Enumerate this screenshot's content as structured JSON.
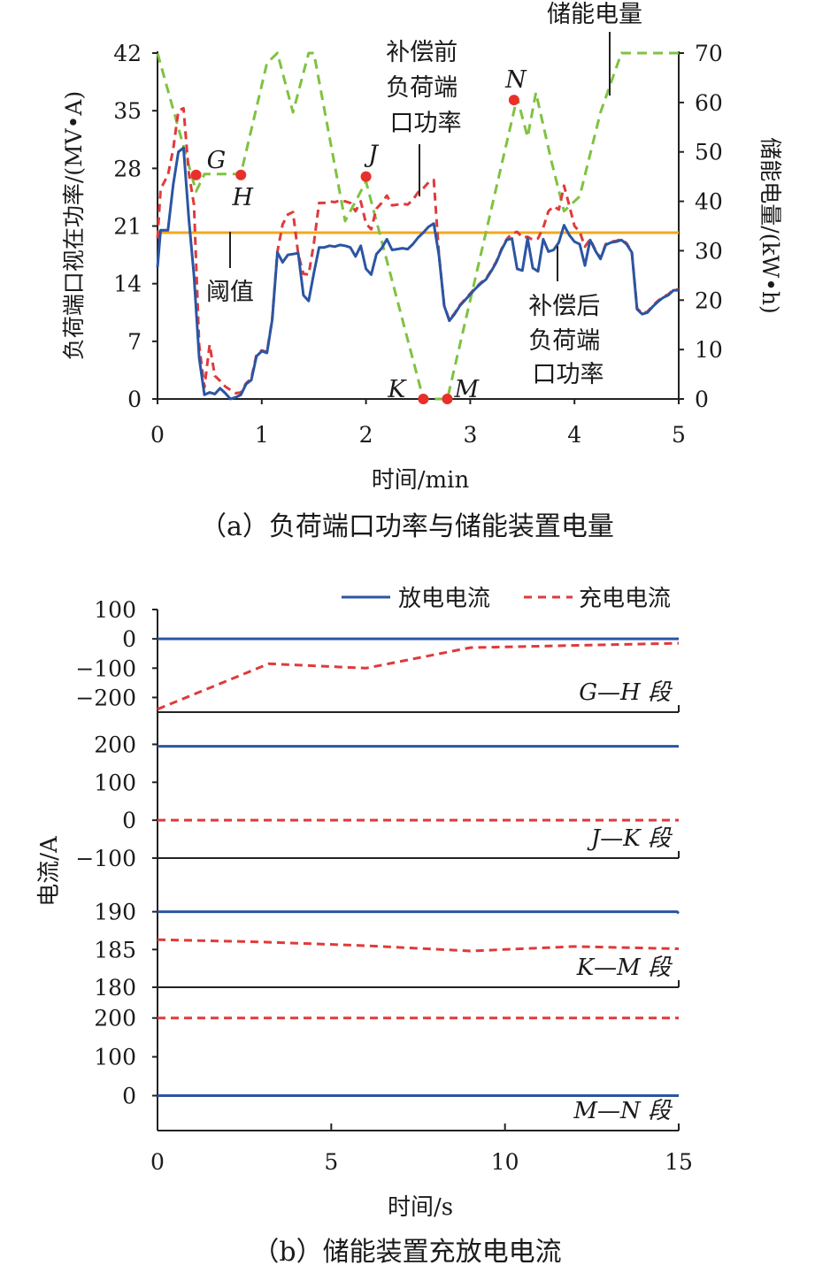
{
  "chart_data": [
    {
      "type": "line",
      "caption": "（a）负荷端口功率与储能装置电量",
      "xlabel": "时间/min",
      "ylabel": "负荷端口视在功率/(MV•A)",
      "y2label": "储能电量/(kW•h)",
      "xlim": [
        0,
        5
      ],
      "ylim": [
        0,
        42
      ],
      "y2lim": [
        0,
        70
      ],
      "xticks": [
        "0",
        "1",
        "2",
        "3",
        "4",
        "5"
      ],
      "yticks": [
        "0",
        "7",
        "14",
        "21",
        "28",
        "35",
        "42"
      ],
      "y2ticks": [
        "0",
        "10",
        "20",
        "30",
        "40",
        "50",
        "60",
        "70"
      ],
      "threshold": 20.2,
      "series": [
        {
          "name": "补偿后负荷端口功率",
          "color": "#2b55a3",
          "style": "solid",
          "axis": "left",
          "x": [
            0,
            0.03,
            0.1,
            0.15,
            0.2,
            0.25,
            0.3,
            0.35,
            0.4,
            0.45,
            0.5,
            0.55,
            0.6,
            0.65,
            0.7,
            0.75,
            0.8,
            0.85,
            0.9,
            0.95,
            1.0,
            1.05,
            1.1,
            1.15,
            1.2,
            1.25,
            1.3,
            1.35,
            1.4,
            1.45,
            1.5,
            1.55,
            1.6,
            1.65,
            1.7,
            1.75,
            1.8,
            1.85,
            1.9,
            1.95,
            2.0,
            2.05,
            2.1,
            2.15,
            2.2,
            2.25,
            2.3,
            2.35,
            2.4,
            2.45,
            2.5,
            2.55,
            2.6,
            2.65,
            2.7,
            2.75,
            2.8,
            2.85,
            2.9,
            2.95,
            3.0,
            3.05,
            3.1,
            3.15,
            3.2,
            3.25,
            3.3,
            3.35,
            3.4,
            3.45,
            3.5,
            3.55,
            3.6,
            3.65,
            3.7,
            3.75,
            3.8,
            3.85,
            3.9,
            3.95,
            4.0,
            4.05,
            4.1,
            4.15,
            4.2,
            4.25,
            4.3,
            4.35,
            4.4,
            4.45,
            4.5,
            4.55,
            4.6,
            4.65,
            4.7,
            4.75,
            4.8,
            4.85,
            4.9,
            4.95,
            5.0
          ],
          "y": [
            16,
            20.5,
            20.5,
            26,
            30,
            30.5,
            22,
            15,
            5,
            0.5,
            0.8,
            0.6,
            1.3,
            0.7,
            0,
            0.2,
            0.5,
            1.8,
            2.3,
            5.2,
            5.8,
            5.6,
            9.6,
            17.8,
            16.6,
            17.5,
            17.6,
            17.7,
            12.6,
            11.9,
            15.3,
            18.4,
            18.4,
            18.6,
            18.5,
            18.7,
            18.6,
            18.4,
            17.3,
            18.6,
            15.8,
            15.1,
            17.6,
            18.3,
            19.4,
            18.1,
            18.2,
            18.3,
            18.2,
            18.8,
            19.6,
            20.2,
            20.9,
            21.3,
            17.4,
            11.3,
            9.5,
            10.3,
            11.3,
            12.0,
            12.7,
            13.4,
            14.0,
            14.5,
            15.5,
            16.6,
            18.1,
            19.3,
            19.5,
            15.8,
            15.6,
            19.5,
            15.9,
            15.5,
            19.4,
            17.9,
            18.1,
            19.0,
            21.1,
            19.9,
            19.1,
            18.8,
            16.2,
            19.3,
            18.0,
            17.0,
            18.7,
            19.0,
            19.1,
            19.3,
            18.8,
            17.8,
            10.9,
            10.3,
            10.5,
            11.2,
            11.8,
            12.3,
            12.6,
            13.2,
            13.2
          ]
        },
        {
          "name": "补偿前负荷端口功率",
          "color": "#e03a3a",
          "style": "dashed",
          "axis": "left",
          "x": [
            0,
            0.03,
            0.1,
            0.15,
            0.2,
            0.25,
            0.3,
            0.35,
            0.4,
            0.45,
            0.5,
            0.55,
            0.6,
            0.65,
            0.7,
            0.75,
            0.8,
            0.85,
            0.9,
            0.95,
            1.0,
            1.05,
            1.1,
            1.15,
            1.2,
            1.25,
            1.3,
            1.35,
            1.4,
            1.45,
            1.5,
            1.55,
            1.6,
            1.65,
            1.7,
            1.75,
            1.8,
            1.85,
            1.9,
            1.95,
            2.0,
            2.05,
            2.1,
            2.15,
            2.2,
            2.25,
            2.3,
            2.35,
            2.4,
            2.45,
            2.5,
            2.55,
            2.6,
            2.65,
            2.7,
            2.75,
            2.8,
            2.85,
            2.9,
            2.95,
            3.0,
            3.05,
            3.1,
            3.15,
            3.2,
            3.25,
            3.3,
            3.35,
            3.4,
            3.45,
            3.5,
            3.55,
            3.6,
            3.65,
            3.7,
            3.75,
            3.8,
            3.85,
            3.9,
            3.95,
            4.0,
            4.05,
            4.1,
            4.15,
            4.2,
            4.25,
            4.3,
            4.35,
            4.4,
            4.45,
            4.5,
            4.55,
            4.6,
            4.65,
            4.7,
            4.75,
            4.8,
            4.85,
            4.9,
            4.95,
            5.0
          ],
          "y": [
            19.5,
            25.5,
            27.2,
            30.3,
            35.0,
            35.3,
            27.5,
            23.6,
            6.5,
            1.4,
            6.6,
            2.8,
            2.2,
            1.5,
            1.1,
            0.7,
            0.8,
            1.9,
            2.5,
            5.4,
            5.9,
            5.7,
            9.7,
            17.9,
            21.2,
            22.4,
            22.7,
            17.6,
            15.2,
            15.1,
            18.9,
            23.8,
            23.8,
            24.0,
            23.9,
            24.1,
            24.0,
            23.8,
            22.8,
            24.0,
            21.3,
            20.6,
            23.1,
            23.8,
            24.7,
            23.5,
            23.6,
            23.7,
            23.6,
            24.2,
            25.1,
            25.6,
            26.3,
            26.6,
            17.5,
            11.3,
            9.6,
            10.4,
            11.4,
            12.1,
            12.8,
            13.5,
            14.1,
            14.6,
            15.6,
            16.7,
            18.2,
            19.4,
            20.1,
            20.3,
            19.6,
            19.7,
            19.3,
            19.5,
            20.8,
            22.8,
            23.4,
            23.0,
            25.9,
            23.5,
            21.0,
            20.3,
            18.5,
            19.4,
            18.1,
            17.1,
            18.8,
            19.1,
            19.2,
            19.4,
            18.9,
            17.9,
            11.0,
            10.4,
            10.6,
            11.3,
            11.9,
            12.4,
            12.7,
            13.3,
            13.3
          ]
        },
        {
          "name": "储能电量",
          "color": "#7fc241",
          "style": "dashed",
          "axis": "right",
          "x": [
            0,
            0.37,
            0.45,
            0.8,
            1.05,
            1.15,
            1.3,
            1.45,
            1.5,
            1.8,
            2.0,
            2.55,
            2.78,
            3.0,
            3.45,
            3.55,
            3.63,
            3.78,
            3.9,
            4.05,
            4.25,
            4.45,
            5.0
          ],
          "y": [
            70,
            42,
            45.5,
            45.5,
            68,
            70,
            58,
            70,
            70,
            36,
            44,
            0,
            0,
            20,
            61,
            53,
            62,
            48,
            38,
            41,
            58,
            70,
            70
          ]
        }
      ],
      "annotations": [
        {
          "label": "阈值",
          "x": 0.7,
          "y": 20.2
        },
        {
          "label": "补偿前\n负荷端\n口功率",
          "x": 2.5,
          "y": 26.3
        },
        {
          "label": "补偿后\n负荷端\n口功率",
          "x": 3.85,
          "y": 18.5
        },
        {
          "label": "储能电量",
          "x": 4.3,
          "y": 38
        }
      ],
      "points": [
        {
          "label": "G",
          "x": 0.37,
          "y": 27.2
        },
        {
          "label": "H",
          "x": 0.8,
          "y": 27.2
        },
        {
          "label": "J",
          "x": 2.0,
          "y": 27.0
        },
        {
          "label": "K",
          "x": 2.55,
          "y": 0
        },
        {
          "label": "M",
          "x": 2.78,
          "y": 0
        },
        {
          "label": "N",
          "x": 3.42,
          "y": 36.3
        }
      ]
    },
    {
      "type": "line",
      "caption": "（b）储能装置充放电电流",
      "xlabel": "时间/s",
      "ylabel": "电流/A",
      "xlim": [
        0,
        15
      ],
      "xticks": [
        "0",
        "5",
        "10",
        "15"
      ],
      "legend": [
        "放电电流",
        "充电电流"
      ],
      "panels": [
        {
          "label": "G—H 段",
          "ylim": [
            -250,
            100
          ],
          "yticks": [
            "100",
            "0",
            "−100",
            "−200"
          ],
          "yvals": [
            100,
            0,
            -100,
            -200
          ],
          "series": [
            {
              "name": "放电电流",
              "x": [
                0,
                15
              ],
              "y": [
                0,
                0
              ]
            },
            {
              "name": "充电电流",
              "x": [
                0,
                3.2,
                6,
                9,
                15
              ],
              "y": [
                -240,
                -85,
                -100,
                -30,
                -15
              ]
            }
          ]
        },
        {
          "label": "J—K 段",
          "ylim": [
            -100,
            250
          ],
          "yticks": [
            "200",
            "100",
            "0",
            "−100"
          ],
          "yvals": [
            200,
            100,
            0,
            -100
          ],
          "series": [
            {
              "name": "放电电流",
              "x": [
                0,
                15
              ],
              "y": [
                195,
                195
              ]
            },
            {
              "name": "充电电流",
              "x": [
                0,
                15
              ],
              "y": [
                0,
                0
              ]
            }
          ]
        },
        {
          "label": "K—M 段",
          "ylim": [
            180,
            193
          ],
          "yticks": [
            "190",
            "185",
            "180"
          ],
          "yvals": [
            190,
            185,
            180
          ],
          "series": [
            {
              "name": "放电电流",
              "x": [
                0,
                14.95,
                15
              ],
              "y": [
                190,
                190,
                189.8
              ]
            },
            {
              "name": "充电电流",
              "x": [
                0,
                3,
                6,
                9,
                12,
                15
              ],
              "y": [
                186.3,
                186,
                185.5,
                184.8,
                185.4,
                185.1
              ]
            }
          ]
        },
        {
          "label": "M—N 段",
          "ylim": [
            -90,
            245
          ],
          "yticks": [
            "200",
            "100",
            "0"
          ],
          "yvals": [
            200,
            100,
            0
          ],
          "series": [
            {
              "name": "放电电流",
              "x": [
                0,
                15
              ],
              "y": [
                0,
                0
              ]
            },
            {
              "name": "充电电流",
              "x": [
                0,
                15
              ],
              "y": [
                200,
                200
              ]
            }
          ]
        }
      ]
    }
  ]
}
